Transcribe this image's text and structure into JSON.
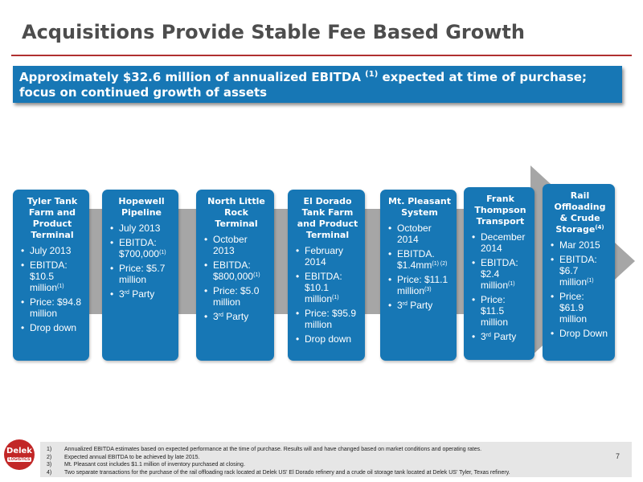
{
  "header": {
    "title": "Acquisitions Provide Stable Fee Based Growth"
  },
  "banner": {
    "text_before": "Approximately $32.6 million of annualized EBITDA ",
    "sup": "(1)",
    "text_after": " expected at time of purchase; focus on continued growth of assets"
  },
  "colors": {
    "card_blue": "#1777b5",
    "chevron_gray": "#a6a6a6",
    "title_rule": "#b03030",
    "logo_red": "#c22727"
  },
  "cards": [
    {
      "title": "Tyler Tank Farm and Product Terminal",
      "title_sup": "",
      "bullets": [
        {
          "text": "July 2013",
          "sup": ""
        },
        {
          "text": "EBITDA: $10.5 million",
          "sup": "(1)"
        },
        {
          "text": "Price: $94.8 million",
          "sup": ""
        },
        {
          "text": "Drop down",
          "sup": ""
        }
      ]
    },
    {
      "title": "Hopewell Pipeline",
      "title_sup": "",
      "bullets": [
        {
          "text": "July 2013",
          "sup": ""
        },
        {
          "text": "EBITDA: $700,000",
          "sup": "(1)"
        },
        {
          "text": "Price: $5.7 million",
          "sup": ""
        },
        {
          "text": "3rd Party",
          "sup": ""
        }
      ]
    },
    {
      "title": "North Little Rock Terminal",
      "title_sup": "",
      "bullets": [
        {
          "text": "October 2013",
          "sup": ""
        },
        {
          "text": "EBITDA: $800,000",
          "sup": "(1)"
        },
        {
          "text": "Price: $5.0 million",
          "sup": ""
        },
        {
          "text": "3rd Party",
          "sup": ""
        }
      ]
    },
    {
      "title": "El Dorado Tank Farm and Product Terminal",
      "title_sup": "",
      "bullets": [
        {
          "text": "February 2014",
          "sup": ""
        },
        {
          "text": "EBITDA: $10.1 million",
          "sup": "(1)"
        },
        {
          "text": "Price: $95.9 million",
          "sup": ""
        },
        {
          "text": "Drop down",
          "sup": ""
        }
      ]
    },
    {
      "title": "Mt. Pleasant System",
      "title_sup": "",
      "bullets": [
        {
          "text": "October 2014",
          "sup": ""
        },
        {
          "text": "EBITDA. $1.4mm",
          "sup": "(1) (2)"
        },
        {
          "text": "Price: $11.1 million",
          "sup": "(3)"
        },
        {
          "text": "3rd Party",
          "sup": ""
        }
      ]
    },
    {
      "title": "Frank Thompson Transport",
      "title_sup": "",
      "bullets": [
        {
          "text": "December 2014",
          "sup": ""
        },
        {
          "text": "EBITDA: $2.4 million",
          "sup": "(1)"
        },
        {
          "text": "Price: $11.5 million",
          "sup": ""
        },
        {
          "text": "3rd Party",
          "sup": ""
        }
      ]
    },
    {
      "title": "Rail Offloading & Crude Storage",
      "title_sup": "(4)",
      "bullets": [
        {
          "text": "Mar 2015",
          "sup": ""
        },
        {
          "text": "EBITDA: $6.7 million",
          "sup": "(1)"
        },
        {
          "text": "Price: $61.9 million",
          "sup": ""
        },
        {
          "text": "Drop Down",
          "sup": ""
        }
      ]
    }
  ],
  "footnotes": [
    {
      "num": "1)",
      "text": "Annualized EBITDA estimates based on expected performance at the time of purchase. Results will and have changed based on market conditions and operating rates."
    },
    {
      "num": "2)",
      "text": "Expected annual EBITDA to be achieved by late 2015."
    },
    {
      "num": "3)",
      "text": "Mt. Pleasant cost includes $1.1 million of inventory purchased at closing."
    },
    {
      "num": "4)",
      "text": "Two separate transactions for the purchase of the rail offloading rack located at Delek US' El Dorado refinery and a crude oil storage tank located at Delek US' Tyler, Texas refinery."
    }
  ],
  "page_number": "7",
  "logo": {
    "name": "Delek",
    "sub": "LOGISTICS"
  }
}
